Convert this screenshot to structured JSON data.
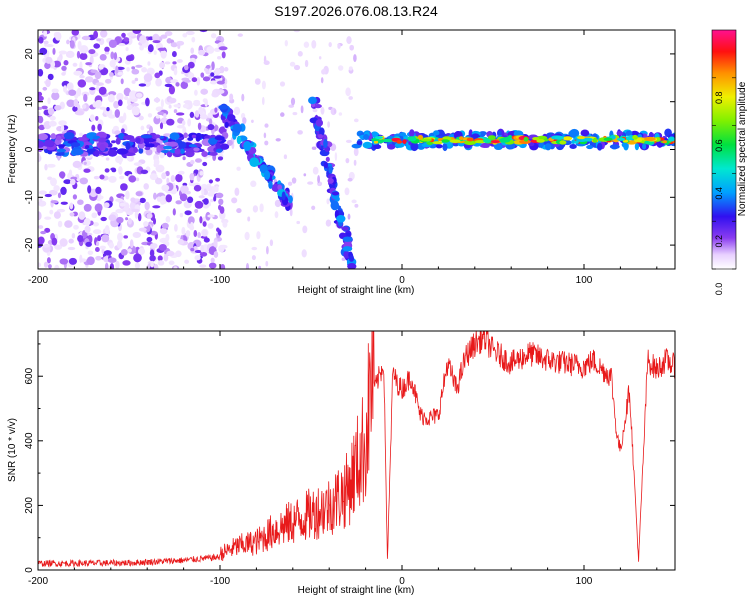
{
  "title": "S197.2026.076.08.13.R24",
  "chart_data": [
    {
      "type": "heatmap",
      "xlabel": "Height of straight line (km)",
      "ylabel": "Frequency (Hz)",
      "xlim": [
        -200,
        150
      ],
      "ylim": [
        -25,
        25
      ],
      "x_ticks": [
        -200,
        -100,
        0,
        100
      ],
      "y_ticks": [
        -20,
        -10,
        0,
        10,
        20
      ],
      "colorbar": {
        "label": "Normalized spectral amplitude",
        "range": [
          0.0,
          1.0
        ],
        "ticks": [
          0.0,
          0.2,
          0.4,
          0.6,
          0.8
        ]
      },
      "features": [
        {
          "name": "scattered noise",
          "x_range": [
            -200,
            -97
          ],
          "frequency_range": [
            -25,
            25
          ],
          "amplitude": 0.15
        },
        {
          "name": "ridge near 0 Hz",
          "x_range": [
            -200,
            -97
          ],
          "frequency": 1,
          "amplitude": 0.2
        },
        {
          "name": "descending branch 1",
          "from": [
            -98,
            8
          ],
          "to": [
            -60,
            -12
          ],
          "amplitude": 0.25
        },
        {
          "name": "descending branch 2",
          "from": [
            -50,
            12
          ],
          "to": [
            -27,
            -25
          ],
          "amplitude": 0.2
        },
        {
          "name": "strong carrier line",
          "x_range": [
            -25,
            150
          ],
          "frequency": 2,
          "amplitude": 0.95
        }
      ]
    },
    {
      "type": "line",
      "xlabel": "Height of straight line (km)",
      "ylabel": "SNR (10 * v/v)",
      "xlim": [
        -200,
        150
      ],
      "ylim": [
        0,
        740
      ],
      "x_ticks": [
        -200,
        -100,
        0,
        100
      ],
      "y_ticks": [
        0,
        200,
        400,
        600
      ],
      "series": [
        {
          "name": "SNR",
          "color": "#e8191a",
          "x": [
            -200,
            -150,
            -120,
            -100,
            -90,
            -80,
            -70,
            -60,
            -50,
            -40,
            -35,
            -30,
            -25,
            -20,
            -15,
            -10,
            -8,
            -5,
            -3,
            0,
            5,
            10,
            15,
            20,
            25,
            30,
            35,
            40,
            45,
            50,
            60,
            70,
            80,
            90,
            100,
            105,
            110,
            115,
            118,
            120,
            125,
            130,
            135,
            140,
            145,
            150
          ],
          "y": [
            20,
            22,
            30,
            40,
            60,
            70,
            100,
            120,
            140,
            160,
            180,
            200,
            260,
            320,
            560,
            640,
            30,
            620,
            580,
            560,
            600,
            480,
            470,
            480,
            640,
            560,
            660,
            700,
            720,
            680,
            640,
            670,
            650,
            640,
            630,
            650,
            620,
            600,
            420,
            370,
            560,
            30,
            650,
            620,
            650,
            630
          ]
        }
      ]
    }
  ]
}
